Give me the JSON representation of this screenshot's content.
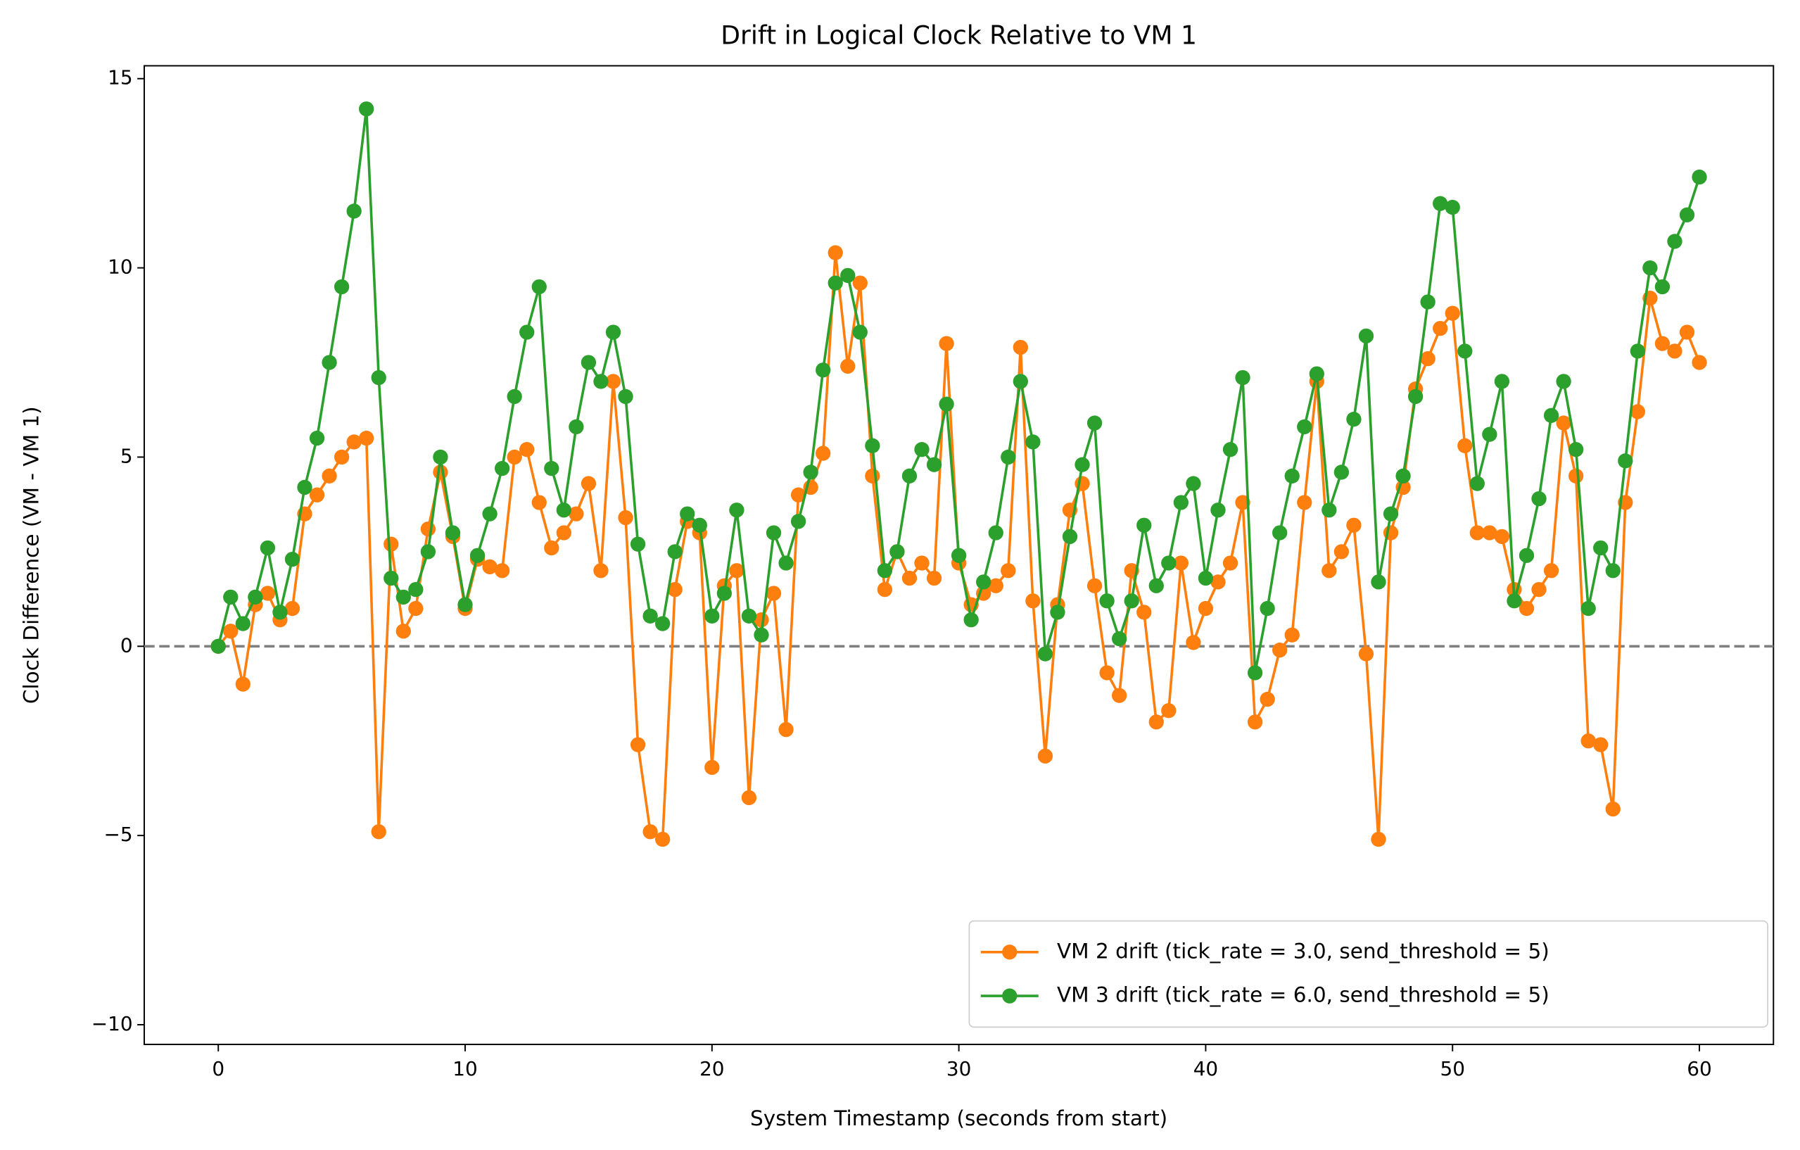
{
  "chart_data": {
    "type": "line",
    "title": "Drift in Logical Clock Relative to VM 1",
    "x_label": "System Timestamp (seconds from start)",
    "y_label": "Clock Difference (VM - VM 1)",
    "x": [
      0,
      0.5,
      1,
      1.5,
      2,
      2.5,
      3,
      3.5,
      4,
      4.5,
      5,
      5.5,
      6,
      6.5,
      7,
      7.5,
      8,
      8.5,
      9,
      9.5,
      10,
      10.5,
      11,
      11.5,
      12,
      12.5,
      13,
      13.5,
      14,
      14.5,
      15,
      15.5,
      16,
      16.5,
      17,
      17.5,
      18,
      18.5,
      19,
      19.5,
      20,
      20.5,
      21,
      21.5,
      22,
      22.5,
      23,
      23.5,
      24,
      24.5,
      25,
      25.5,
      26,
      26.5,
      27,
      27.5,
      28,
      28.5,
      29,
      29.5,
      30,
      30.5,
      31,
      31.5,
      32,
      32.5,
      33,
      33.5,
      34,
      34.5,
      35,
      35.5,
      36,
      36.5,
      37,
      37.5,
      38,
      38.5,
      39,
      39.5,
      40,
      40.5,
      41,
      41.5,
      42,
      42.5,
      43,
      43.5,
      44,
      44.5,
      45,
      45.5,
      46,
      46.5,
      47,
      47.5,
      48,
      48.5,
      49,
      49.5,
      50,
      50.5,
      51,
      51.5,
      52,
      52.5,
      53,
      53.5,
      54,
      54.5,
      55,
      55.5,
      56,
      56.5,
      57,
      57.5,
      58,
      58.5,
      59,
      59.5,
      60
    ],
    "series": [
      {
        "name": "VM 2 drift (tick_rate = 3.0, send_threshold = 5)",
        "color": "#ff7f0e",
        "values": [
          0,
          0.4,
          -1.0,
          1.1,
          1.4,
          0.7,
          1.0,
          3.5,
          4.0,
          4.5,
          5.0,
          5.4,
          5.5,
          -4.9,
          2.7,
          0.4,
          1.0,
          3.1,
          4.6,
          2.9,
          1.0,
          2.3,
          2.1,
          2.0,
          5.0,
          5.2,
          3.8,
          2.6,
          3.0,
          3.5,
          4.3,
          2.0,
          7.0,
          3.4,
          -2.6,
          -4.9,
          -5.1,
          1.5,
          3.3,
          3.0,
          -3.2,
          1.6,
          2.0,
          -4.0,
          0.7,
          1.4,
          -2.2,
          4.0,
          4.2,
          5.1,
          10.4,
          7.4,
          9.6,
          4.5,
          1.5,
          2.5,
          1.8,
          2.2,
          1.8,
          8.0,
          2.2,
          1.1,
          1.4,
          1.6,
          2.0,
          7.9,
          1.2,
          -2.9,
          1.1,
          3.6,
          4.3,
          1.6,
          -0.7,
          -1.3,
          2.0,
          0.9,
          -2.0,
          -1.7,
          2.2,
          0.1,
          1.0,
          1.7,
          2.2,
          3.8,
          -2.0,
          -1.4,
          -0.1,
          0.3,
          3.8,
          7.0,
          2.0,
          2.5,
          3.2,
          -0.2,
          -5.1,
          3.0,
          4.2,
          6.8,
          7.6,
          8.4,
          8.8,
          5.3,
          3.0,
          3.0,
          2.9,
          1.5,
          1.0,
          1.5,
          2.0,
          5.9,
          4.5,
          -2.5,
          -2.6,
          -4.3,
          3.8,
          6.2,
          9.2,
          8.0,
          7.8,
          8.3,
          7.5
        ]
      },
      {
        "name": "VM 3 drift (tick_rate = 6.0, send_threshold = 5)",
        "color": "#2ca02c",
        "values": [
          0,
          1.3,
          0.6,
          1.3,
          2.6,
          0.9,
          2.3,
          4.2,
          5.5,
          7.5,
          9.5,
          11.5,
          14.2,
          7.1,
          1.8,
          1.3,
          1.5,
          2.5,
          5.0,
          3.0,
          1.1,
          2.4,
          3.5,
          4.7,
          6.6,
          8.3,
          9.5,
          4.7,
          3.6,
          5.8,
          7.5,
          7.0,
          8.3,
          6.6,
          2.7,
          0.8,
          0.6,
          2.5,
          3.5,
          3.2,
          0.8,
          1.4,
          3.6,
          0.8,
          0.3,
          3.0,
          2.2,
          3.3,
          4.6,
          7.3,
          9.6,
          9.8,
          8.3,
          5.3,
          2.0,
          2.5,
          4.5,
          5.2,
          4.8,
          6.4,
          2.4,
          0.7,
          1.7,
          3.0,
          5.0,
          7.0,
          5.4,
          -0.2,
          0.9,
          2.9,
          4.8,
          5.9,
          1.2,
          0.2,
          1.2,
          3.2,
          1.6,
          2.2,
          3.8,
          4.3,
          1.8,
          3.6,
          5.2,
          7.1,
          -0.7,
          1.0,
          3.0,
          4.5,
          5.8,
          7.2,
          3.6,
          4.6,
          6.0,
          8.2,
          1.7,
          3.5,
          4.5,
          6.6,
          9.1,
          11.7,
          11.6,
          7.8,
          4.3,
          5.6,
          7.0,
          1.2,
          2.4,
          3.9,
          6.1,
          7.0,
          5.2,
          1.0,
          2.6,
          2.0,
          4.9,
          7.8,
          10.0,
          9.5,
          10.7,
          11.4,
          12.4
        ]
      }
    ],
    "xlim": [
      -3,
      63
    ],
    "ylim": [
      -10.52,
      15.34
    ],
    "xticks": [
      0,
      10,
      20,
      30,
      40,
      50,
      60
    ],
    "yticks": [
      {
        "value": -10,
        "label": "−10"
      },
      {
        "value": -5,
        "label": "−5"
      },
      0,
      5,
      10,
      15
    ],
    "hline": 0,
    "hline_color": "#808080",
    "legend": "lower right",
    "grid": false
  }
}
